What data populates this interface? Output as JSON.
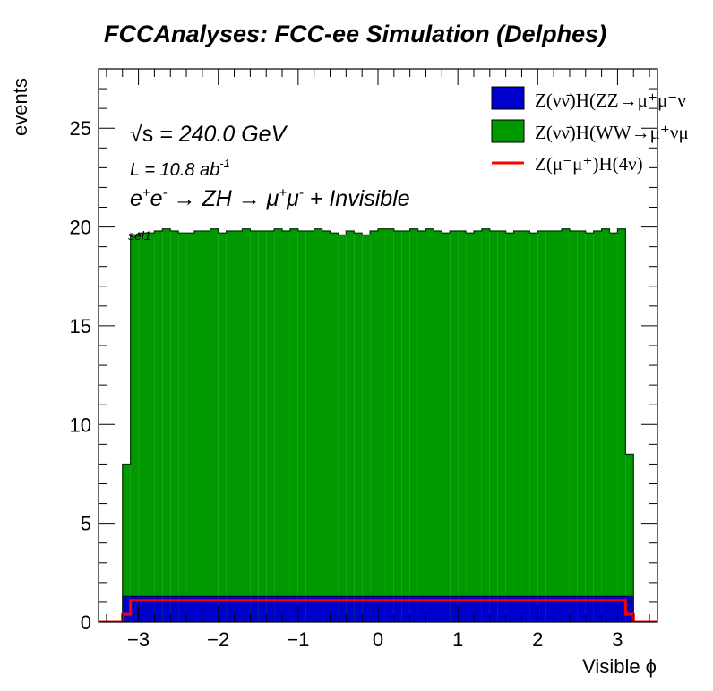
{
  "chart_data": {
    "type": "bar",
    "title": "FCCAnalyses: FCC-ee Simulation (Delphes)",
    "xlabel": "Visible ϕ",
    "ylabel": "events",
    "xlim": [
      -3.5,
      3.5
    ],
    "ylim": [
      0,
      28
    ],
    "x_ticks": [
      -3,
      -2,
      -1,
      0,
      1,
      2,
      3
    ],
    "x_tick_labels": [
      "−3",
      "−2",
      "−1",
      "0",
      "1",
      "2",
      "3"
    ],
    "y_ticks": [
      0,
      5,
      10,
      15,
      20,
      25
    ],
    "y_tick_labels": [
      "0",
      "5",
      "10",
      "15",
      "20",
      "25"
    ],
    "bins": {
      "start": -3.2,
      "end": 3.2,
      "count": 64,
      "width": 0.1
    },
    "annotations": {
      "sqrt_s_prefix": "√s",
      "energy": " = 240.0 GeV",
      "lumi_main": "L = 10.8 ab",
      "lumi_exp": "-1",
      "process_line": [
        "e",
        "+",
        "e",
        "-",
        " → ZH → μ",
        "+",
        "μ",
        "-",
        " + Invisible"
      ],
      "selection": "sel1"
    },
    "legend": {
      "placement": "top-right",
      "entries": [
        {
          "label": "Z(νν̄)H(ZZ→μ⁺μ⁻ν",
          "color": "#0000cc",
          "style": "fill"
        },
        {
          "label": "Z(νν̄)H(WW→μ⁺νμ",
          "color": "#009900",
          "style": "fill"
        },
        {
          "label": "Z(μ⁻μ⁺)H(4ν)",
          "color": "#ff0000",
          "style": "line"
        }
      ]
    },
    "series": [
      {
        "color": "#0000cc",
        "style": "stacked-fill",
        "values": [
          1.3,
          1.3,
          1.3,
          1.3,
          1.3,
          1.3,
          1.3,
          1.3,
          1.3,
          1.3,
          1.3,
          1.3,
          1.3,
          1.3,
          1.3,
          1.3,
          1.3,
          1.3,
          1.3,
          1.3,
          1.3,
          1.3,
          1.3,
          1.3,
          1.3,
          1.3,
          1.3,
          1.3,
          1.3,
          1.3,
          1.3,
          1.3,
          1.3,
          1.3,
          1.3,
          1.3,
          1.3,
          1.3,
          1.3,
          1.3,
          1.3,
          1.3,
          1.3,
          1.3,
          1.3,
          1.3,
          1.3,
          1.3,
          1.3,
          1.3,
          1.3,
          1.3,
          1.3,
          1.3,
          1.3,
          1.3,
          1.3,
          1.3,
          1.3,
          1.3,
          1.3,
          1.3,
          1.3,
          1.3
        ]
      },
      {
        "color": "#009900",
        "style": "stacked-fill",
        "values": [
          8.0,
          19.6,
          19.7,
          19.7,
          19.8,
          19.9,
          19.8,
          19.7,
          19.7,
          19.8,
          19.8,
          19.9,
          19.7,
          19.8,
          19.8,
          19.9,
          19.8,
          19.8,
          19.8,
          19.9,
          19.8,
          19.9,
          19.8,
          19.8,
          19.9,
          19.8,
          19.7,
          19.6,
          19.8,
          19.7,
          19.6,
          19.8,
          19.9,
          19.9,
          19.8,
          19.8,
          19.9,
          19.8,
          19.9,
          19.8,
          19.7,
          19.8,
          19.8,
          19.7,
          19.8,
          19.9,
          19.8,
          19.8,
          19.7,
          19.8,
          19.8,
          19.7,
          19.8,
          19.8,
          19.8,
          19.9,
          19.8,
          19.8,
          19.7,
          19.8,
          19.9,
          19.7,
          19.9,
          8.5
        ]
      },
      {
        "color": "#ff0000",
        "style": "line",
        "values": [
          0.4,
          1.1,
          1.1,
          1.1,
          1.1,
          1.1,
          1.1,
          1.1,
          1.1,
          1.1,
          1.1,
          1.1,
          1.1,
          1.1,
          1.1,
          1.1,
          1.1,
          1.1,
          1.1,
          1.1,
          1.1,
          1.1,
          1.1,
          1.1,
          1.1,
          1.1,
          1.1,
          1.1,
          1.1,
          1.1,
          1.1,
          1.1,
          1.1,
          1.1,
          1.1,
          1.1,
          1.1,
          1.1,
          1.1,
          1.1,
          1.1,
          1.1,
          1.1,
          1.1,
          1.1,
          1.1,
          1.1,
          1.1,
          1.1,
          1.1,
          1.1,
          1.1,
          1.1,
          1.1,
          1.1,
          1.1,
          1.1,
          1.1,
          1.1,
          1.1,
          1.1,
          1.1,
          1.1,
          0.4
        ]
      }
    ]
  }
}
